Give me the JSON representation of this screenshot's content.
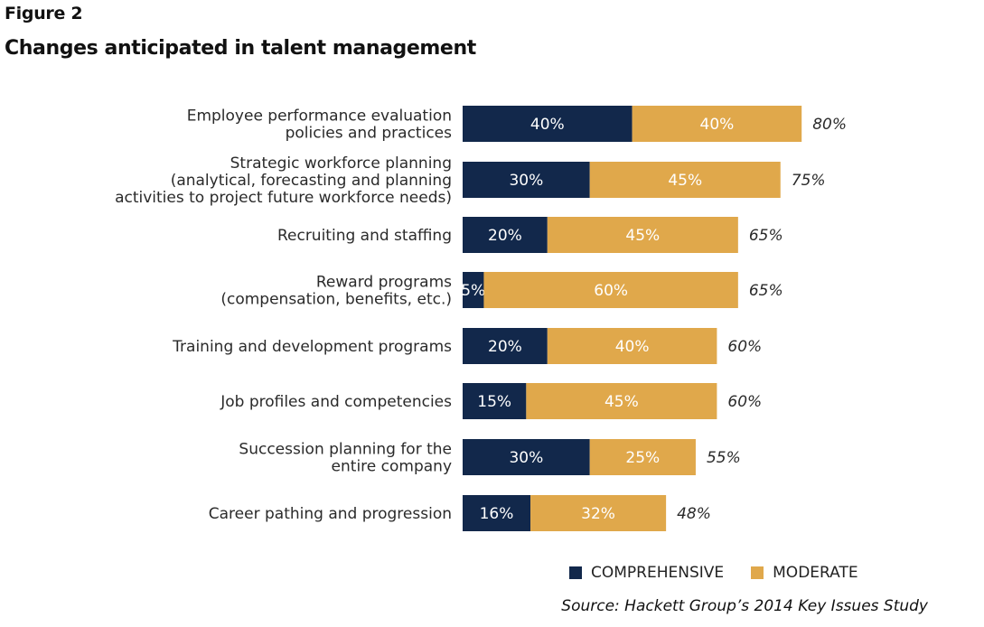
{
  "figure_label": "Figure 2",
  "chart_data": {
    "type": "bar",
    "orientation": "horizontal",
    "stacked": true,
    "title": "Changes anticipated in talent management",
    "categories": [
      [
        "Employee performance evaluation",
        "policies and practices"
      ],
      [
        "Strategic workforce planning",
        "(analytical, forecasting and planning",
        "activities to project future workforce needs)"
      ],
      [
        "Recruiting and staffing"
      ],
      [
        "Reward programs",
        "(compensation, benefits, etc.)"
      ],
      [
        "Training and development programs"
      ],
      [
        "Job profiles and competencies"
      ],
      [
        "Succession planning for the",
        "entire company"
      ],
      [
        "Career pathing and progression"
      ]
    ],
    "series": [
      {
        "name": "COMPREHENSIVE",
        "color": "#12284b",
        "values": [
          40,
          30,
          20,
          5,
          20,
          15,
          30,
          16
        ]
      },
      {
        "name": "MODERATE",
        "color": "#e0a84b",
        "values": [
          40,
          45,
          45,
          60,
          40,
          45,
          25,
          32
        ]
      }
    ],
    "totals": [
      80,
      75,
      65,
      65,
      60,
      60,
      55,
      48
    ],
    "unit": "%",
    "xlim": [
      0,
      100
    ],
    "grid": false,
    "legend": "bottom"
  },
  "source": "Source: Hackett Group’s 2014 Key Issues Study"
}
